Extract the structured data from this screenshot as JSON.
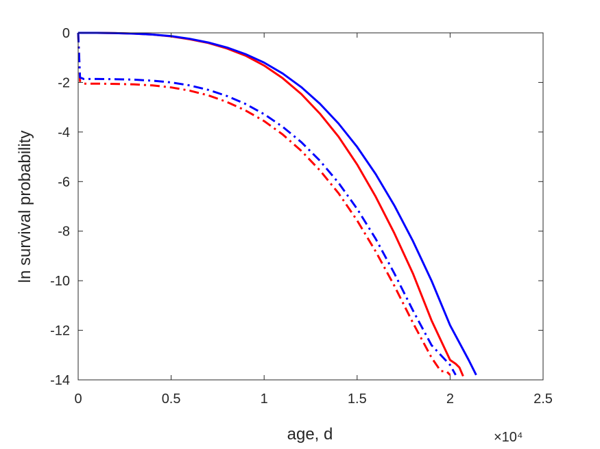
{
  "chart_data": {
    "type": "line",
    "title": "",
    "xlabel": "age, d",
    "ylabel": "ln survival probability",
    "x_exponent_label": "×10⁴",
    "xlim": [
      0,
      25000
    ],
    "ylim": [
      -14,
      0
    ],
    "x_ticks": [
      0,
      5000,
      10000,
      15000,
      20000,
      25000
    ],
    "x_tick_labels": [
      "0",
      "0.5",
      "1",
      "1.5",
      "2",
      "2.5"
    ],
    "y_ticks": [
      0,
      -2,
      -4,
      -6,
      -8,
      -10,
      -12,
      -14
    ],
    "y_tick_labels": [
      "0",
      "-2",
      "-4",
      "-6",
      "-8",
      "-10",
      "-12",
      "-14"
    ],
    "grid": false,
    "legend": "none",
    "series": [
      {
        "color": "#ff0000",
        "line_style": "solid",
        "x": [
          0,
          1000,
          2000,
          3000,
          4000,
          5000,
          6000,
          7000,
          8000,
          9000,
          10000,
          11000,
          12000,
          13000,
          14000,
          15000,
          16000,
          17000,
          18000,
          19000,
          20000,
          20300,
          20500,
          20700
        ],
        "y": [
          0,
          0,
          -0.01,
          -0.03,
          -0.07,
          -0.14,
          -0.26,
          -0.41,
          -0.63,
          -0.92,
          -1.32,
          -1.83,
          -2.47,
          -3.26,
          -4.19,
          -5.31,
          -6.61,
          -8.08,
          -9.71,
          -11.6,
          -13.2,
          -13.35,
          -13.5,
          -13.85
        ]
      },
      {
        "color": "#0000ff",
        "line_style": "solid",
        "x": [
          0,
          1000,
          2000,
          3000,
          4000,
          5000,
          6000,
          7000,
          8000,
          9000,
          10000,
          11000,
          12000,
          13000,
          14000,
          15000,
          16000,
          17000,
          18000,
          19000,
          20000,
          21000,
          21400
        ],
        "y": [
          0,
          0,
          -0.01,
          -0.03,
          -0.07,
          -0.13,
          -0.24,
          -0.39,
          -0.59,
          -0.86,
          -1.2,
          -1.64,
          -2.19,
          -2.86,
          -3.66,
          -4.6,
          -5.7,
          -6.96,
          -8.4,
          -10.0,
          -11.8,
          -13.2,
          -13.8
        ]
      },
      {
        "color": "#ff0000",
        "line_style": "dashdot",
        "x": [
          0,
          100,
          300,
          1000,
          2000,
          3000,
          4000,
          5000,
          6000,
          7000,
          8000,
          9000,
          10000,
          11000,
          12000,
          13000,
          14000,
          15000,
          16000,
          17000,
          18000,
          19000,
          19500,
          19800,
          20000
        ],
        "y": [
          0,
          -1.95,
          -2.05,
          -2.05,
          -2.06,
          -2.08,
          -2.12,
          -2.2,
          -2.33,
          -2.52,
          -2.79,
          -3.13,
          -3.56,
          -4.1,
          -4.76,
          -5.55,
          -6.47,
          -7.57,
          -8.82,
          -10.2,
          -11.7,
          -13.1,
          -13.65,
          -13.65,
          -13.8
        ]
      },
      {
        "color": "#0000ff",
        "line_style": "dashdot",
        "x": [
          0,
          100,
          300,
          1000,
          2000,
          3000,
          4000,
          5000,
          6000,
          7000,
          8000,
          9000,
          10000,
          11000,
          12000,
          13000,
          14000,
          15000,
          16000,
          17000,
          18000,
          19000,
          20000,
          20300
        ],
        "y": [
          0,
          -1.8,
          -1.86,
          -1.86,
          -1.87,
          -1.89,
          -1.93,
          -2.0,
          -2.12,
          -2.3,
          -2.55,
          -2.87,
          -3.28,
          -3.79,
          -4.41,
          -5.16,
          -6.05,
          -7.1,
          -8.31,
          -9.7,
          -11.2,
          -12.6,
          -13.4,
          -13.8
        ]
      }
    ]
  }
}
